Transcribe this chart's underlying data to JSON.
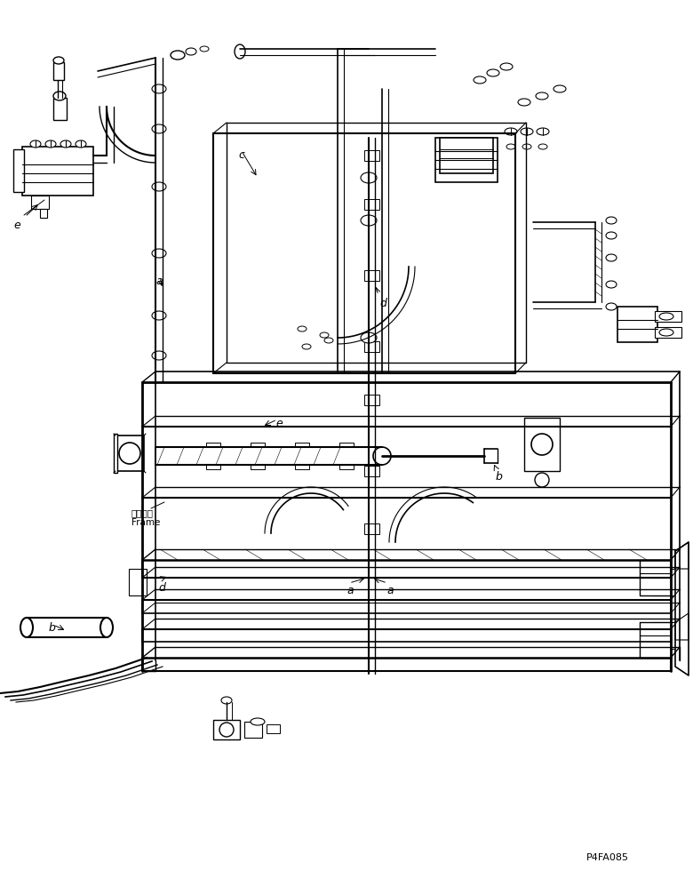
{
  "figure_width": 7.8,
  "figure_height": 9.8,
  "dpi": 100,
  "bg_color": "#ffffff",
  "lc": "#000000",
  "title": "P4FA085",
  "frame_label_jp": "フレーム",
  "frame_label_en": "Frame",
  "labels_italic": [
    "a",
    "b",
    "c",
    "d",
    "e"
  ]
}
